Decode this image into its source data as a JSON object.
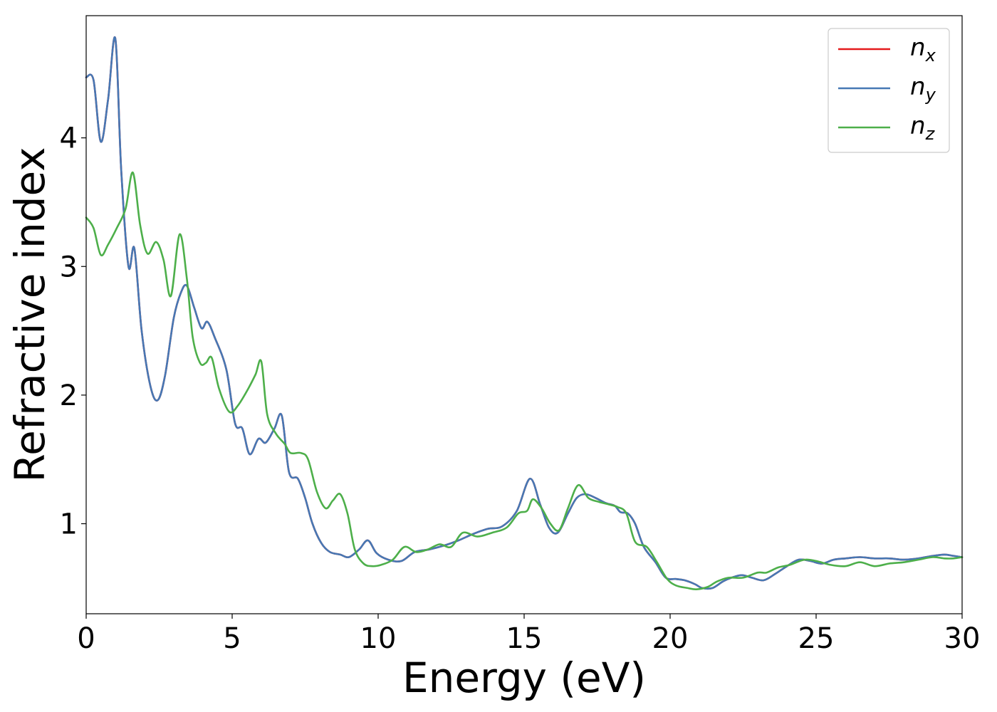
{
  "chart_data": {
    "type": "line",
    "xlabel": "Energy (eV)",
    "ylabel": "Refractive index",
    "xlim": [
      0,
      30
    ],
    "ylim": [
      0.3,
      4.95
    ],
    "xticks": [
      0,
      5,
      10,
      15,
      20,
      25,
      30
    ],
    "yticks": [
      1,
      2,
      3,
      4
    ],
    "grid": false,
    "legend_position": "top-right",
    "series": [
      {
        "name": "n_x",
        "legend_base": "n",
        "legend_sub": "x",
        "color": "#e41a1c",
        "x": [
          0,
          0.25,
          0.5,
          0.75,
          1.0,
          1.2,
          1.45,
          1.65,
          1.9,
          2.2,
          2.45,
          2.7,
          3.0,
          3.25,
          3.45,
          3.7,
          3.95,
          4.15,
          4.4,
          4.8,
          5.1,
          5.35,
          5.6,
          5.9,
          6.15,
          6.45,
          6.7,
          6.95,
          7.25,
          7.5,
          7.75,
          8.05,
          8.35,
          8.7,
          9.0,
          9.35,
          9.65,
          9.95,
          10.35,
          10.8,
          11.25,
          11.75,
          12.25,
          12.75,
          13.25,
          13.75,
          14.25,
          14.75,
          15.2,
          15.55,
          15.85,
          16.15,
          16.5,
          16.8,
          17.1,
          17.45,
          17.8,
          18.1,
          18.3,
          18.55,
          18.8,
          19.1,
          19.5,
          19.85,
          20.2,
          20.5,
          20.85,
          21.1,
          21.45,
          21.8,
          22.1,
          22.45,
          22.8,
          23.2,
          23.6,
          24.0,
          24.4,
          24.8,
          25.2,
          25.6,
          26.0,
          26.5,
          27.0,
          27.5,
          28.0,
          28.5,
          29.0,
          29.4,
          29.7,
          30.0
        ],
        "y": [
          4.47,
          4.45,
          3.97,
          4.3,
          4.77,
          3.75,
          3.0,
          3.14,
          2.5,
          2.07,
          1.96,
          2.15,
          2.6,
          2.8,
          2.85,
          2.68,
          2.52,
          2.57,
          2.45,
          2.2,
          1.78,
          1.74,
          1.54,
          1.66,
          1.63,
          1.74,
          1.84,
          1.4,
          1.35,
          1.2,
          1.0,
          0.85,
          0.78,
          0.76,
          0.74,
          0.8,
          0.87,
          0.77,
          0.72,
          0.71,
          0.78,
          0.8,
          0.83,
          0.87,
          0.92,
          0.96,
          0.98,
          1.1,
          1.35,
          1.15,
          0.97,
          0.93,
          1.08,
          1.2,
          1.23,
          1.2,
          1.16,
          1.14,
          1.09,
          1.08,
          1.0,
          0.82,
          0.7,
          0.58,
          0.57,
          0.56,
          0.53,
          0.5,
          0.5,
          0.55,
          0.58,
          0.6,
          0.58,
          0.56,
          0.61,
          0.67,
          0.72,
          0.71,
          0.69,
          0.72,
          0.73,
          0.74,
          0.73,
          0.73,
          0.72,
          0.73,
          0.75,
          0.76,
          0.75,
          0.74
        ]
      },
      {
        "name": "n_y",
        "legend_base": "n",
        "legend_sub": "y",
        "color": "#4678b4",
        "x": [
          0,
          0.25,
          0.5,
          0.75,
          1.0,
          1.2,
          1.45,
          1.65,
          1.9,
          2.2,
          2.45,
          2.7,
          3.0,
          3.25,
          3.45,
          3.7,
          3.95,
          4.15,
          4.4,
          4.8,
          5.1,
          5.35,
          5.6,
          5.9,
          6.15,
          6.45,
          6.7,
          6.95,
          7.25,
          7.5,
          7.75,
          8.05,
          8.35,
          8.7,
          9.0,
          9.35,
          9.65,
          9.95,
          10.35,
          10.8,
          11.25,
          11.75,
          12.25,
          12.75,
          13.25,
          13.75,
          14.25,
          14.75,
          15.2,
          15.55,
          15.85,
          16.15,
          16.5,
          16.8,
          17.1,
          17.45,
          17.8,
          18.1,
          18.3,
          18.55,
          18.8,
          19.1,
          19.5,
          19.85,
          20.2,
          20.5,
          20.85,
          21.1,
          21.45,
          21.8,
          22.1,
          22.45,
          22.8,
          23.2,
          23.6,
          24.0,
          24.4,
          24.8,
          25.2,
          25.6,
          26.0,
          26.5,
          27.0,
          27.5,
          28.0,
          28.5,
          29.0,
          29.4,
          29.7,
          30.0
        ],
        "y": [
          4.47,
          4.45,
          3.97,
          4.3,
          4.77,
          3.75,
          3.0,
          3.14,
          2.5,
          2.07,
          1.96,
          2.15,
          2.6,
          2.8,
          2.85,
          2.68,
          2.52,
          2.57,
          2.45,
          2.2,
          1.78,
          1.74,
          1.54,
          1.66,
          1.63,
          1.74,
          1.84,
          1.4,
          1.35,
          1.2,
          1.0,
          0.85,
          0.78,
          0.76,
          0.74,
          0.8,
          0.87,
          0.77,
          0.72,
          0.71,
          0.78,
          0.8,
          0.83,
          0.87,
          0.92,
          0.96,
          0.98,
          1.1,
          1.35,
          1.15,
          0.97,
          0.93,
          1.08,
          1.2,
          1.23,
          1.2,
          1.16,
          1.14,
          1.09,
          1.08,
          1.0,
          0.82,
          0.7,
          0.58,
          0.57,
          0.56,
          0.53,
          0.5,
          0.5,
          0.55,
          0.58,
          0.6,
          0.58,
          0.56,
          0.61,
          0.67,
          0.72,
          0.71,
          0.69,
          0.72,
          0.73,
          0.74,
          0.73,
          0.73,
          0.72,
          0.73,
          0.75,
          0.76,
          0.75,
          0.74
        ]
      },
      {
        "name": "n_z",
        "legend_base": "n",
        "legend_sub": "z",
        "color": "#4daf4a",
        "x": [
          0,
          0.25,
          0.5,
          0.75,
          1.05,
          1.35,
          1.6,
          1.85,
          2.1,
          2.4,
          2.65,
          2.9,
          3.2,
          3.45,
          3.65,
          3.9,
          4.1,
          4.3,
          4.55,
          4.9,
          5.2,
          5.55,
          5.8,
          6.0,
          6.2,
          6.5,
          6.8,
          7.0,
          7.35,
          7.6,
          7.9,
          8.2,
          8.45,
          8.7,
          8.95,
          9.2,
          9.5,
          9.8,
          10.1,
          10.5,
          10.9,
          11.3,
          11.7,
          12.1,
          12.5,
          12.9,
          13.4,
          13.9,
          14.4,
          14.8,
          15.1,
          15.3,
          15.6,
          15.9,
          16.2,
          16.5,
          16.85,
          17.2,
          17.55,
          17.9,
          18.2,
          18.5,
          18.8,
          19.2,
          19.55,
          19.9,
          20.2,
          20.6,
          20.9,
          21.3,
          21.6,
          22.0,
          22.5,
          23.0,
          23.3,
          23.7,
          24.1,
          24.6,
          25.0,
          25.5,
          26.0,
          26.5,
          27.0,
          27.5,
          28.0,
          28.5,
          29.0,
          29.4,
          29.7,
          30.0
        ],
        "y": [
          3.38,
          3.3,
          3.09,
          3.17,
          3.3,
          3.45,
          3.73,
          3.32,
          3.1,
          3.19,
          3.05,
          2.77,
          3.25,
          2.9,
          2.45,
          2.25,
          2.25,
          2.29,
          2.05,
          1.87,
          1.92,
          2.05,
          2.16,
          2.26,
          1.85,
          1.7,
          1.62,
          1.55,
          1.55,
          1.5,
          1.25,
          1.12,
          1.18,
          1.23,
          1.08,
          0.8,
          0.69,
          0.67,
          0.68,
          0.72,
          0.82,
          0.78,
          0.8,
          0.84,
          0.82,
          0.93,
          0.9,
          0.93,
          0.97,
          1.08,
          1.1,
          1.19,
          1.12,
          1.0,
          0.95,
          1.12,
          1.3,
          1.2,
          1.17,
          1.15,
          1.13,
          1.08,
          0.86,
          0.82,
          0.7,
          0.57,
          0.52,
          0.5,
          0.49,
          0.51,
          0.55,
          0.58,
          0.58,
          0.62,
          0.62,
          0.66,
          0.68,
          0.72,
          0.71,
          0.68,
          0.67,
          0.7,
          0.67,
          0.69,
          0.7,
          0.72,
          0.74,
          0.73,
          0.73,
          0.74
        ]
      }
    ]
  }
}
